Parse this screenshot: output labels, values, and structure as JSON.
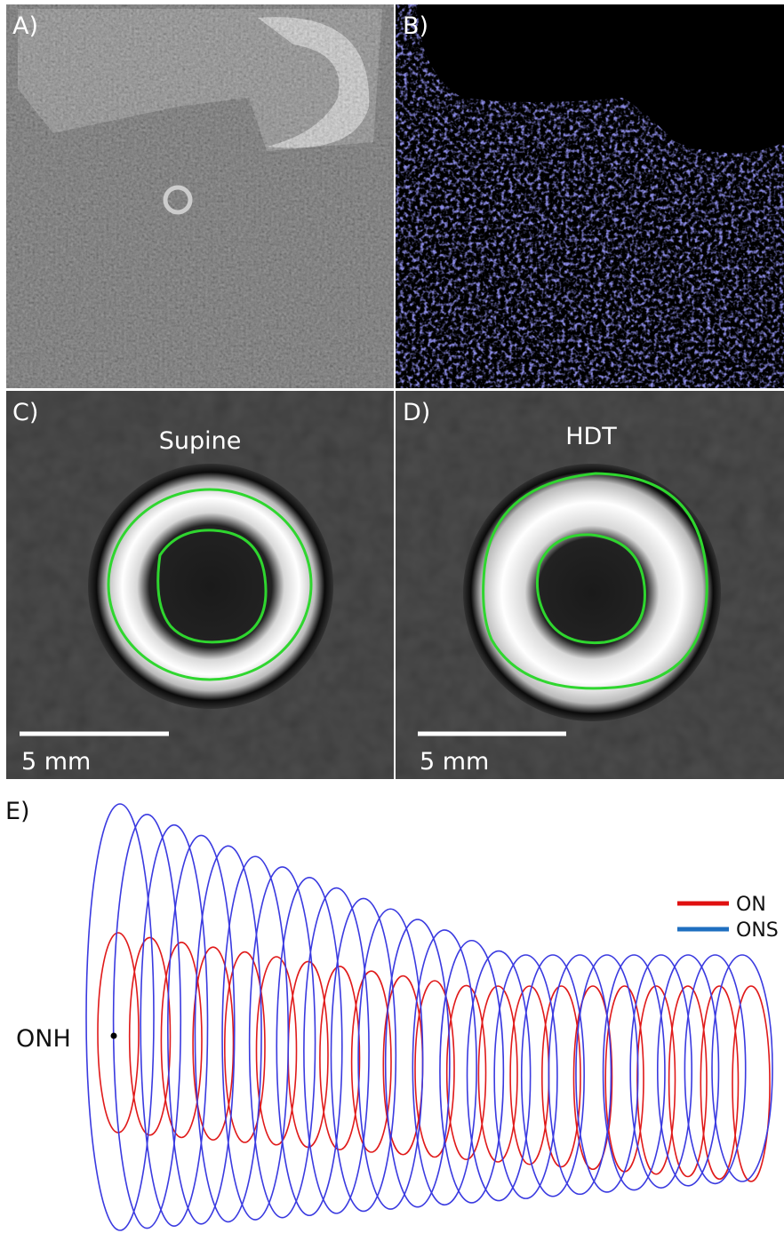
{
  "panels": {
    "a": {
      "label": "A)"
    },
    "b": {
      "label": "B)"
    },
    "c": {
      "label": "C)",
      "title": "Supine",
      "scale_bar": "5 mm"
    },
    "d": {
      "label": "D)",
      "title": "HDT",
      "scale_bar": "5 mm"
    },
    "e": {
      "label": "E)",
      "legend": [
        "ON",
        "ONS"
      ],
      "annotation": "ONH"
    }
  }
}
